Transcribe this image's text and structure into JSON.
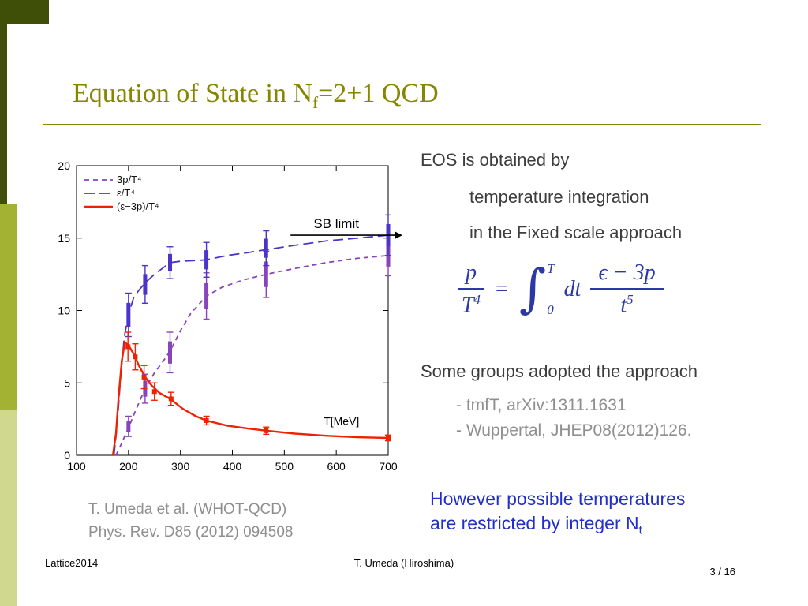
{
  "slide": {
    "title": {
      "pre": "Equation of State in N",
      "sub": "f",
      "post": "=2+1 QCD"
    },
    "footer": {
      "left": "Lattice2014",
      "center": "T. Umeda (Hiroshima)",
      "page": "3 / 16"
    }
  },
  "figure": {
    "caption_line1": "T. Umeda et al. (WHOT-QCD)",
    "caption_line2": "Phys. Rev. D85 (2012) 094508"
  },
  "body": {
    "line1": "EOS is obtained by",
    "line2": "temperature integration",
    "line3": "in the Fixed scale approach",
    "adopted": "Some groups adopted the approach",
    "ref1": "- tmfT, arXiv:1311.1631",
    "ref2": "- Wuppertal, JHEP08(2012)126.",
    "note1": "However possible temperatures",
    "note2_pre": "are restricted by integer N",
    "note2_sub": "t"
  },
  "formula": {
    "num1": "p",
    "den1_base": "T",
    "den1_exp": "4",
    "equals": "=",
    "integral": "∫",
    "upper_limit": "T",
    "lower_limit": "0",
    "dt": "dt",
    "num2": "ϵ − 3p",
    "den2_base": "t",
    "den2_exp": "5"
  },
  "colors": {
    "title_olive": "#868600",
    "bar_dark": "#404f08",
    "bar_mid": "#a4b234",
    "bar_light": "#cfd88e",
    "body_text": "#3d3d3d",
    "muted_text": "#8f8f8f",
    "note_blue": "#2230c8",
    "formula_blue": "#2b38a6"
  },
  "chart_data": {
    "type": "line",
    "title": "",
    "xlabel": "T[MeV]",
    "ylabel": "",
    "xlim": [
      100,
      700
    ],
    "ylim": [
      0,
      20
    ],
    "xticks": [
      100,
      200,
      300,
      400,
      500,
      600,
      700
    ],
    "yticks": [
      0,
      5,
      10,
      15,
      20
    ],
    "legend_position": "top-left",
    "xlabel_pos": [
      610,
      2.1
    ],
    "annotation": {
      "text": "SB limit",
      "y": 15.2,
      "x_start": 512,
      "x_text": 600
    },
    "series": [
      {
        "name": "3p/T⁴",
        "color": "#8844bb",
        "style": "short-dash",
        "marker": "bar",
        "line": [
          [
            176,
            0
          ],
          [
            185,
            0.7
          ],
          [
            200,
            1.9
          ],
          [
            215,
            3.2
          ],
          [
            232,
            4.6
          ],
          [
            250,
            5.7
          ],
          [
            265,
            6.4
          ],
          [
            280,
            7.2
          ],
          [
            300,
            8.6
          ],
          [
            320,
            9.8
          ],
          [
            350,
            11.0
          ],
          [
            380,
            11.6
          ],
          [
            420,
            12.1
          ],
          [
            465,
            12.5
          ],
          [
            520,
            12.9
          ],
          [
            580,
            13.3
          ],
          [
            640,
            13.6
          ],
          [
            700,
            13.8
          ]
        ],
        "points": [
          [
            200,
            2.0,
            0.7
          ],
          [
            232,
            4.6,
            1.0
          ],
          [
            280,
            7.1,
            1.4
          ],
          [
            350,
            11.0,
            1.6
          ],
          [
            465,
            12.5,
            1.6
          ],
          [
            700,
            13.8,
            1.4
          ]
        ]
      },
      {
        "name": "ε/T⁴",
        "color": "#4a35c8",
        "style": "long-dash",
        "marker": "bar",
        "line": [
          [
            172,
            0
          ],
          [
            178,
            2.0
          ],
          [
            185,
            5.5
          ],
          [
            192,
            8.2
          ],
          [
            200,
            9.7
          ],
          [
            210,
            10.9
          ],
          [
            220,
            11.4
          ],
          [
            232,
            11.9
          ],
          [
            250,
            12.5
          ],
          [
            265,
            12.9
          ],
          [
            280,
            13.3
          ],
          [
            300,
            13.4
          ],
          [
            330,
            13.45
          ],
          [
            350,
            13.5
          ],
          [
            390,
            13.8
          ],
          [
            430,
            14.0
          ],
          [
            465,
            14.2
          ],
          [
            520,
            14.5
          ],
          [
            580,
            14.8
          ],
          [
            640,
            15.0
          ],
          [
            700,
            15.2
          ]
        ],
        "points": [
          [
            200,
            9.7,
            1.5
          ],
          [
            232,
            11.8,
            1.3
          ],
          [
            280,
            13.3,
            1.1
          ],
          [
            350,
            13.5,
            1.2
          ],
          [
            465,
            14.3,
            1.2
          ],
          [
            700,
            15.2,
            1.4
          ]
        ]
      },
      {
        "name": "(ε−3p)/T⁴",
        "color": "#ee2200",
        "style": "solid",
        "marker": "square",
        "line": [
          [
            170,
            0
          ],
          [
            176,
            1.5
          ],
          [
            181,
            4.0
          ],
          [
            187,
            6.5
          ],
          [
            193,
            7.8
          ],
          [
            200,
            7.6
          ],
          [
            210,
            7.0
          ],
          [
            220,
            6.2
          ],
          [
            232,
            5.4
          ],
          [
            245,
            4.8
          ],
          [
            260,
            4.3
          ],
          [
            280,
            3.9
          ],
          [
            305,
            3.2
          ],
          [
            330,
            2.7
          ],
          [
            350,
            2.4
          ],
          [
            390,
            2.05
          ],
          [
            430,
            1.85
          ],
          [
            465,
            1.7
          ],
          [
            520,
            1.5
          ],
          [
            580,
            1.35
          ],
          [
            640,
            1.25
          ],
          [
            700,
            1.2
          ]
        ],
        "points": [
          [
            199,
            7.5,
            1.0
          ],
          [
            213,
            6.8,
            0.9
          ],
          [
            230,
            5.4,
            0.8
          ],
          [
            250,
            4.4,
            0.6
          ],
          [
            282,
            3.9,
            0.45
          ],
          [
            350,
            2.4,
            0.3
          ],
          [
            465,
            1.7,
            0.25
          ],
          [
            700,
            1.2,
            0.2
          ]
        ]
      }
    ]
  }
}
